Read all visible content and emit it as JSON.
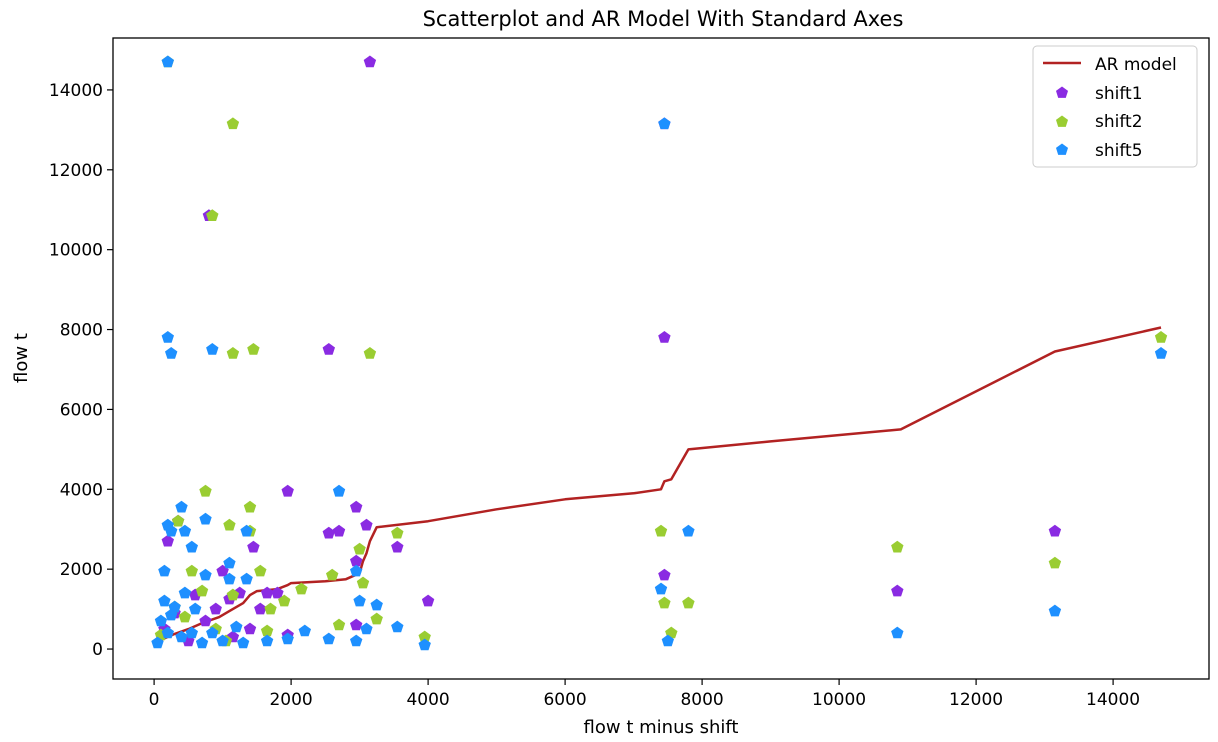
{
  "chart_data": {
    "type": "scatter",
    "title": "Scatterplot and AR Model With Standard Axes",
    "xlabel": "flow t minus shift",
    "ylabel": "flow t",
    "xlim": [
      -600,
      15400
    ],
    "ylim": [
      -750,
      15300
    ],
    "xticks": [
      0,
      2000,
      4000,
      6000,
      8000,
      10000,
      12000,
      14000
    ],
    "yticks": [
      0,
      2000,
      4000,
      6000,
      8000,
      10000,
      12000,
      14000
    ],
    "grid": false,
    "legend": {
      "position": "upper right",
      "entries": [
        "AR model",
        "shift1",
        "shift2",
        "shift5"
      ]
    },
    "colors": {
      "ar_model": "#b22222",
      "shift1": "#8a2be2",
      "shift2": "#9acd32",
      "shift5": "#1e90ff"
    },
    "line": {
      "name": "AR model",
      "color": "#b22222",
      "points": [
        [
          60,
          200
        ],
        [
          300,
          380
        ],
        [
          500,
          500
        ],
        [
          700,
          650
        ],
        [
          950,
          800
        ],
        [
          1100,
          950
        ],
        [
          1300,
          1150
        ],
        [
          1400,
          1350
        ],
        [
          1500,
          1450
        ],
        [
          1800,
          1500
        ],
        [
          1950,
          1600
        ],
        [
          2000,
          1650
        ],
        [
          2500,
          1700
        ],
        [
          2800,
          1750
        ],
        [
          3000,
          1900
        ],
        [
          3050,
          2200
        ],
        [
          3100,
          2400
        ],
        [
          3150,
          2700
        ],
        [
          3250,
          3050
        ],
        [
          4000,
          3200
        ],
        [
          5000,
          3500
        ],
        [
          6000,
          3750
        ],
        [
          7000,
          3900
        ],
        [
          7400,
          4000
        ],
        [
          7450,
          4200
        ],
        [
          7550,
          4250
        ],
        [
          7800,
          5000
        ],
        [
          9000,
          5200
        ],
        [
          10900,
          5500
        ],
        [
          13150,
          7450
        ],
        [
          14700,
          8050
        ]
      ]
    },
    "series": [
      {
        "name": "shift1",
        "color": "#8a2be2",
        "points": [
          [
            3150,
            14700
          ],
          [
            7450,
            13150
          ],
          [
            800,
            10850
          ],
          [
            2550,
            7500
          ],
          [
            7450,
            7800
          ],
          [
            1950,
            3950
          ],
          [
            2950,
            3550
          ],
          [
            3100,
            3100
          ],
          [
            2700,
            2950
          ],
          [
            2550,
            2900
          ],
          [
            1450,
            2550
          ],
          [
            3550,
            2550
          ],
          [
            7450,
            1850
          ],
          [
            10850,
            1450
          ],
          [
            13150,
            2950
          ],
          [
            4000,
            1200
          ],
          [
            2950,
            2200
          ],
          [
            350,
            3200
          ],
          [
            200,
            2700
          ],
          [
            1000,
            1950
          ],
          [
            1650,
            1400
          ],
          [
            1800,
            1400
          ],
          [
            1550,
            1000
          ],
          [
            1400,
            500
          ],
          [
            1150,
            300
          ],
          [
            1950,
            350
          ],
          [
            2950,
            600
          ],
          [
            600,
            1350
          ],
          [
            1100,
            1250
          ],
          [
            300,
            900
          ],
          [
            750,
            700
          ],
          [
            150,
            500
          ],
          [
            500,
            200
          ],
          [
            900,
            1000
          ],
          [
            1250,
            1400
          ]
        ]
      },
      {
        "name": "shift2",
        "color": "#9acd32",
        "points": [
          [
            200,
            14700
          ],
          [
            1150,
            13150
          ],
          [
            850,
            10850
          ],
          [
            1150,
            7400
          ],
          [
            1450,
            7500
          ],
          [
            3150,
            7400
          ],
          [
            750,
            3950
          ],
          [
            1400,
            3550
          ],
          [
            1100,
            3100
          ],
          [
            1400,
            2950
          ],
          [
            350,
            3200
          ],
          [
            7400,
            2950
          ],
          [
            3550,
            2900
          ],
          [
            3000,
            2500
          ],
          [
            13150,
            2150
          ],
          [
            10850,
            2550
          ],
          [
            14700,
            7800
          ],
          [
            3950,
            300
          ],
          [
            7550,
            400
          ],
          [
            7450,
            1150
          ],
          [
            7800,
            1150
          ],
          [
            1550,
            1950
          ],
          [
            550,
            1950
          ],
          [
            2150,
            1500
          ],
          [
            2600,
            1850
          ],
          [
            3050,
            1650
          ],
          [
            1900,
            1200
          ],
          [
            1700,
            1000
          ],
          [
            2700,
            600
          ],
          [
            3250,
            750
          ],
          [
            1650,
            450
          ],
          [
            900,
            500
          ],
          [
            700,
            1450
          ],
          [
            1150,
            1350
          ],
          [
            300,
            1050
          ],
          [
            450,
            800
          ],
          [
            100,
            350
          ],
          [
            1050,
            200
          ]
        ]
      },
      {
        "name": "shift5",
        "color": "#1e90ff",
        "points": [
          [
            200,
            14700
          ],
          [
            7450,
            13150
          ],
          [
            200,
            7800
          ],
          [
            250,
            7400
          ],
          [
            850,
            7500
          ],
          [
            14700,
            7400
          ],
          [
            2700,
            3950
          ],
          [
            400,
            3550
          ],
          [
            750,
            3250
          ],
          [
            200,
            3100
          ],
          [
            250,
            2950
          ],
          [
            450,
            2950
          ],
          [
            550,
            2550
          ],
          [
            1350,
            2950
          ],
          [
            7800,
            2950
          ],
          [
            13150,
            950
          ],
          [
            10850,
            400
          ],
          [
            7500,
            200
          ],
          [
            7400,
            1500
          ],
          [
            3950,
            100
          ],
          [
            3550,
            550
          ],
          [
            3250,
            1100
          ],
          [
            3000,
            1200
          ],
          [
            2950,
            1950
          ],
          [
            1100,
            2150
          ],
          [
            1100,
            1750
          ],
          [
            1350,
            1750
          ],
          [
            750,
            1850
          ],
          [
            150,
            1950
          ],
          [
            600,
            1000
          ],
          [
            450,
            1400
          ],
          [
            150,
            1200
          ],
          [
            300,
            1050
          ],
          [
            100,
            700
          ],
          [
            200,
            400
          ],
          [
            400,
            300
          ],
          [
            700,
            150
          ],
          [
            1000,
            200
          ],
          [
            1300,
            150
          ],
          [
            1650,
            200
          ],
          [
            1950,
            250
          ],
          [
            2200,
            450
          ],
          [
            2550,
            250
          ],
          [
            2950,
            200
          ],
          [
            3100,
            500
          ],
          [
            550,
            400
          ],
          [
            850,
            400
          ],
          [
            1200,
            550
          ],
          [
            50,
            150
          ],
          [
            250,
            850
          ]
        ]
      }
    ]
  }
}
